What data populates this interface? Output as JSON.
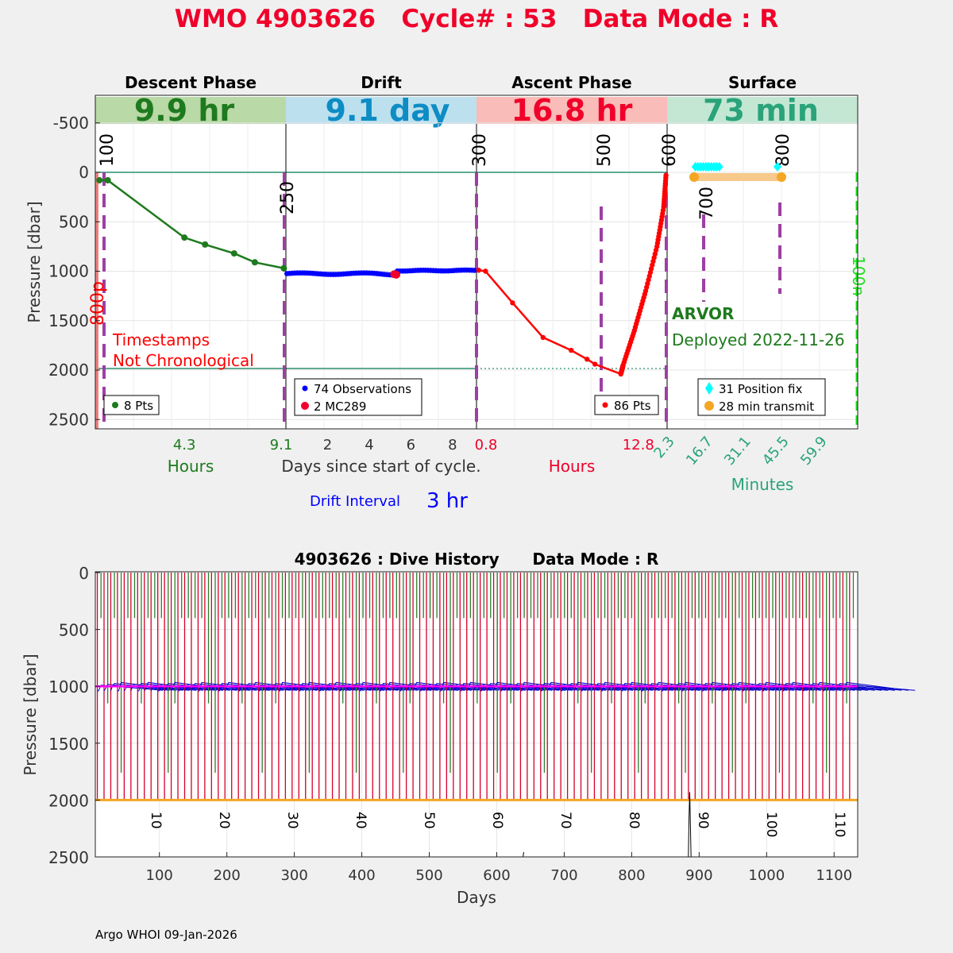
{
  "header": {
    "title": "WMO 4903626   Cycle# : 53   Data Mode : R",
    "footer": "Argo WHOI 09-Jan-2026"
  },
  "colors": {
    "title": "#f0002a",
    "descent": "#1e7a1e",
    "drift": "#0000ff",
    "ascent": "#ff0000",
    "surface": "#2aa37a",
    "vline": "#9e3fa3",
    "transmit": "#f5a623",
    "fix": "#00ffff"
  },
  "phases": {
    "descent": {
      "label": "Descent Phase",
      "duration": "9.9 hr",
      "band_color": "#b9d9a6",
      "text_color": "#1e7a1e"
    },
    "drift": {
      "label": "Drift",
      "duration": "9.1 day",
      "band_color": "#bde0ee",
      "text_color": "#0e8cc4"
    },
    "ascent": {
      "label": "Ascent Phase",
      "duration": "16.8 hr",
      "band_color": "#f9bcb8",
      "text_color": "#f0002a"
    },
    "surface": {
      "label": "Surface",
      "duration": "73 min",
      "band_color": "#c3e7d3",
      "text_color": "#2aa37a"
    }
  },
  "top_panel": {
    "ylabel": "Pressure [dbar]",
    "yticks": [
      "-500",
      "0",
      "500",
      "1000",
      "1500",
      "2000",
      "2500"
    ],
    "yvals": [
      -500,
      0,
      500,
      1000,
      1500,
      2000,
      2500
    ],
    "ylim": [
      -750,
      2600
    ],
    "descent_xtick": "4.3",
    "descent_xtick_end": "9.1",
    "descent_xlabel": "Hours",
    "drift_xticks": [
      "2",
      "4",
      "6",
      "8"
    ],
    "drift_xlabel": "Days since start of cycle.",
    "ascent_xticks": [
      "0.8",
      "12.8"
    ],
    "ascent_xlabel": "Hours",
    "surface_xticks": [
      "2.3",
      "16.7",
      "31.1",
      "45.5",
      "59.9"
    ],
    "surface_xlabel": "Minutes",
    "drift_interval_label": "Drift Interval",
    "drift_interval_value": "3 hr",
    "marker_labels": {
      "m100": "100",
      "m250": "250",
      "m300": "300",
      "m500": "500",
      "m600": "600",
      "m700": "700",
      "m800": "800",
      "m800p": "800p",
      "m100n": "100n"
    },
    "warning_line1": "Timestamps",
    "warning_line2": "Not Chronological",
    "float_type": "ARVOR",
    "deployed": "Deployed 2022-11-26",
    "legend_descent": "8 Pts",
    "legend_drift_obs": "74 Observations",
    "legend_drift_mc": "2 MC289",
    "legend_ascent": "86 Pts",
    "legend_fix": "31 Position fix",
    "legend_transmit": "28 min transmit"
  },
  "bottom_panel": {
    "title": "4903626 : Dive History      Data Mode : R",
    "xlabel": "Days",
    "ylabel": "Pressure [dbar]",
    "xticks": [
      "100",
      "200",
      "300",
      "400",
      "500",
      "600",
      "700",
      "800",
      "900",
      "1000",
      "1100"
    ],
    "yticks": [
      "0",
      "500",
      "1000",
      "1500",
      "2000",
      "2500"
    ],
    "cycle_labels": [
      "10",
      "20",
      "30",
      "40",
      "50",
      "60",
      "70",
      "80",
      "90",
      "100",
      "110"
    ]
  },
  "chart_data": [
    {
      "type": "line",
      "title": "Descent Phase",
      "xlabel": "Hours",
      "ylabel": "Pressure [dbar]",
      "x": [
        0.2,
        0.6,
        4.3,
        5.3,
        6.7,
        7.7,
        9.1
      ],
      "y": [
        80,
        80,
        660,
        730,
        820,
        910,
        970
      ]
    },
    {
      "type": "scatter",
      "title": "Drift",
      "xlabel": "Days since start of cycle.",
      "ylabel": "Pressure [dbar]",
      "series": [
        {
          "name": "74 Observations",
          "x": [
            0.1,
            1,
            2,
            3,
            4,
            5,
            5.4,
            6,
            7,
            8,
            9
          ],
          "y": [
            1025,
            1020,
            1015,
            1020,
            1025,
            1030,
            1000,
            995,
            995,
            995,
            990
          ]
        },
        {
          "name": "2 MC289",
          "x": [
            5.2,
            5.3
          ],
          "y": [
            1030,
            1035
          ]
        }
      ]
    },
    {
      "type": "line",
      "title": "Ascent Phase",
      "xlabel": "Hours",
      "ylabel": "Pressure [dbar]",
      "x": [
        0.2,
        0.8,
        3.2,
        5.9,
        8.4,
        9.8,
        10.5,
        12.8,
        13.0,
        14.0,
        15.0,
        16.0,
        16.6,
        16.8
      ],
      "y": [
        990,
        1000,
        1320,
        1670,
        1800,
        1890,
        1940,
        2040,
        1950,
        1600,
        1200,
        750,
        350,
        30
      ]
    },
    {
      "type": "scatter",
      "title": "Surface",
      "xlabel": "Minutes",
      "ylabel": "Pressure [dbar]",
      "series": [
        {
          "name": "31 Position fix",
          "x": [
            13,
            14,
            15,
            16,
            17,
            18,
            19,
            20,
            21,
            22,
            44
          ],
          "y": [
            -50,
            -50,
            -50,
            -50,
            -50,
            -50,
            -50,
            -50,
            -50,
            -50,
            -50
          ]
        },
        {
          "name": "28 min transmit",
          "x": [
            12.5,
            45.5
          ],
          "y": [
            50,
            50
          ]
        }
      ]
    },
    {
      "type": "line",
      "title": "4903626 : Dive History",
      "xlabel": "Days",
      "ylabel": "Pressure [dbar]",
      "xlim": [
        5,
        1135
      ],
      "ylim": [
        0,
        2500
      ],
      "park_pressure": 1000,
      "profile_pressure": 2000,
      "cycle_interval_days": 10
    }
  ]
}
